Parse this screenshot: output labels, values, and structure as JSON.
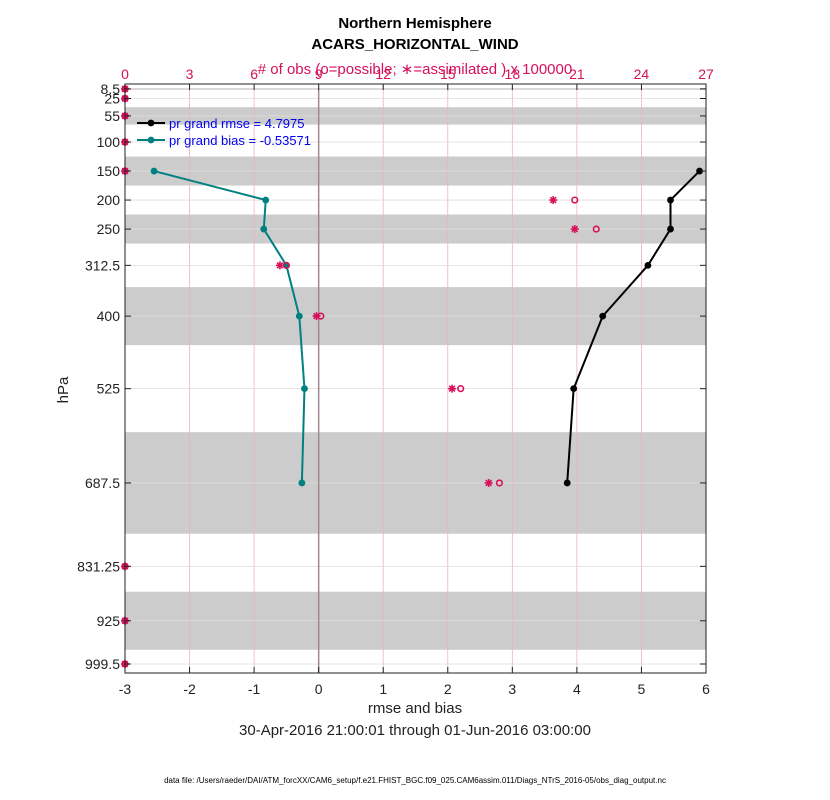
{
  "chart_data": {
    "type": "line",
    "title": "Northern Hemisphere",
    "subtitle": "ACARS_HORIZONTAL_WIND",
    "top_axis_label": "# of obs (o=possible; ∗=assimilated ) x 100000",
    "xlabel": "rmse and bias",
    "ylabel": "hPa",
    "date_range": "30-Apr-2016 21:00:01 through 01-Jun-2016 03:00:00",
    "footnote": "data file: /Users/raeder/DAI/ATM_forcXX/CAM6_setup/f.e21.FHIST_BGC.f09_025.CAM6assim.011/Diags_NTrS_2016-05/obs_diag_output.nc",
    "xlim": [
      -3,
      6
    ],
    "xticks": [
      "-3",
      "-2",
      "-1",
      "0",
      "1",
      "2",
      "3",
      "4",
      "5",
      "6"
    ],
    "top_xlim": [
      0,
      27
    ],
    "top_xticks": [
      "0",
      "3",
      "6",
      "9",
      "12",
      "15",
      "18",
      "21",
      "24",
      "27"
    ],
    "levels": [
      8.5,
      25,
      55,
      100,
      150,
      200,
      250,
      312.5,
      400,
      525,
      687.5,
      831.25,
      925,
      999.5
    ],
    "level_labels": [
      "8.5",
      "25",
      "55",
      "100",
      "150",
      "200",
      "250",
      "312.5",
      "400",
      "525",
      "687.5",
      "831.25",
      "925",
      "999.5"
    ],
    "layer_bands_hPa": [
      [
        7,
        10
      ],
      [
        40,
        70
      ],
      [
        125,
        175
      ],
      [
        225,
        275
      ],
      [
        350,
        450
      ],
      [
        600,
        775
      ],
      [
        875,
        975
      ]
    ],
    "grid": true,
    "legend_position": "top-left",
    "series": [
      {
        "name": "pr grand rmse = 4.7975",
        "color": "#000000",
        "points": [
          [
            150,
            5.9
          ],
          [
            200,
            5.45
          ],
          [
            250,
            5.45
          ],
          [
            312.5,
            5.1
          ],
          [
            400,
            4.4
          ],
          [
            525,
            3.95
          ],
          [
            687.5,
            3.85
          ]
        ]
      },
      {
        "name": "pr grand bias = -0.53571",
        "color": "#008080",
        "points": [
          [
            150,
            -2.55
          ],
          [
            200,
            -0.82
          ],
          [
            250,
            -0.85
          ],
          [
            312.5,
            -0.5
          ],
          [
            400,
            -0.3
          ],
          [
            525,
            -0.22
          ],
          [
            687.5,
            -0.26
          ]
        ]
      }
    ],
    "obs_possible_x100000": [
      [
        8.5,
        0
      ],
      [
        25,
        0
      ],
      [
        55,
        0
      ],
      [
        100,
        0
      ],
      [
        150,
        0
      ],
      [
        200,
        20.9
      ],
      [
        250,
        21.9
      ],
      [
        312.5,
        7.5
      ],
      [
        400,
        9.1
      ],
      [
        525,
        15.6
      ],
      [
        687.5,
        17.4
      ],
      [
        831.25,
        0
      ],
      [
        925,
        0
      ],
      [
        999.5,
        0
      ]
    ],
    "obs_assimilated_x100000": [
      [
        8.5,
        0
      ],
      [
        25,
        0
      ],
      [
        55,
        0
      ],
      [
        100,
        0
      ],
      [
        150,
        0
      ],
      [
        200,
        19.9
      ],
      [
        250,
        20.9
      ],
      [
        312.5,
        7.2
      ],
      [
        400,
        8.9
      ],
      [
        525,
        15.2
      ],
      [
        687.5,
        16.9
      ],
      [
        831.25,
        0
      ],
      [
        925,
        0
      ],
      [
        999.5,
        0
      ]
    ],
    "colors": {
      "obs": "#d6105a",
      "band": "#cccccc",
      "grid": "#e8b4c4",
      "legend_text": "#0000ee"
    }
  }
}
